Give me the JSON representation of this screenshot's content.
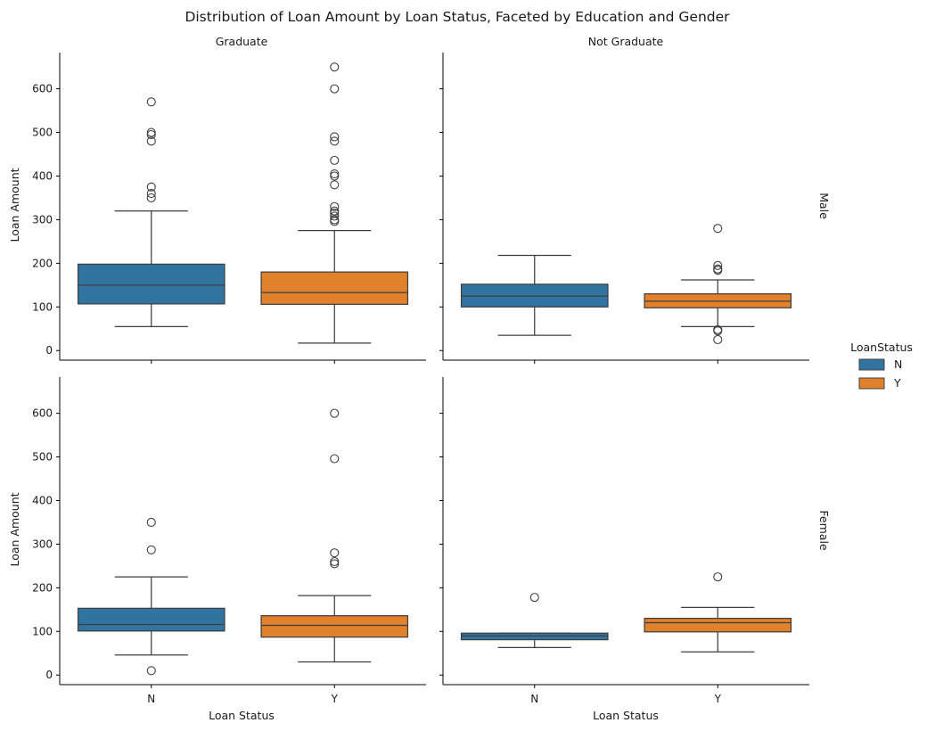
{
  "chart_data": {
    "type": "boxplot",
    "title": "Distribution of Loan Amount by Loan Status, Faceted by Education and Gender",
    "xlabel": "Loan Status",
    "ylabel": "Loan Amount",
    "categories": [
      "N",
      "Y"
    ],
    "ylim": [
      -22,
      683
    ],
    "yticks": [
      0,
      100,
      200,
      300,
      400,
      500,
      600
    ],
    "column_labels": [
      "Graduate",
      "Not Graduate"
    ],
    "row_labels": [
      "Male",
      "Female"
    ],
    "legend": {
      "title": "LoanStatus",
      "placement": "right",
      "entries": [
        {
          "label": "N",
          "color": "#3274a1"
        },
        {
          "label": "Y",
          "color": "#e1812c"
        }
      ]
    },
    "colors": {
      "N": "#3274a1",
      "Y": "#e1812c",
      "line": "#3f3f3f"
    },
    "panels": [
      {
        "row": "Male",
        "col": "Graduate",
        "boxes": [
          {
            "status": "N",
            "whislo": 55,
            "q1": 107,
            "med": 150,
            "q3": 198,
            "whishi": 320,
            "fliers": [
              570,
              500,
              495,
              480,
              375,
              360,
              350
            ]
          },
          {
            "status": "Y",
            "whislo": 17,
            "q1": 106,
            "med": 133,
            "q3": 180,
            "whishi": 275,
            "fliers": [
              650,
              600,
              490,
              480,
              436,
              405,
              400,
              380,
              330,
              320,
              315,
              308,
              300,
              296
            ]
          }
        ]
      },
      {
        "row": "Male",
        "col": "Not Graduate",
        "boxes": [
          {
            "status": "N",
            "whislo": 35,
            "q1": 100,
            "med": 125,
            "q3": 152,
            "whishi": 218,
            "fliers": []
          },
          {
            "status": "Y",
            "whislo": 55,
            "q1": 98,
            "med": 113,
            "q3": 130,
            "whishi": 162,
            "fliers": [
              280,
              195,
              187,
              184,
              48,
              45,
              25
            ]
          }
        ]
      },
      {
        "row": "Female",
        "col": "Graduate",
        "boxes": [
          {
            "status": "N",
            "whislo": 46,
            "q1": 101,
            "med": 116,
            "q3": 153,
            "whishi": 225,
            "fliers": [
              350,
              287,
              10
            ]
          },
          {
            "status": "Y",
            "whislo": 30,
            "q1": 87,
            "med": 114,
            "q3": 136,
            "whishi": 182,
            "fliers": [
              600,
              496,
              280,
              260,
              255
            ]
          }
        ]
      },
      {
        "row": "Female",
        "col": "Not Graduate",
        "boxes": [
          {
            "status": "N",
            "whislo": 63,
            "q1": 81,
            "med": 90,
            "q3": 96,
            "whishi": 96,
            "fliers": [
              178
            ]
          },
          {
            "status": "Y",
            "whislo": 53,
            "q1": 99,
            "med": 120,
            "q3": 130,
            "whishi": 155,
            "fliers": [
              225
            ]
          }
        ]
      }
    ]
  }
}
